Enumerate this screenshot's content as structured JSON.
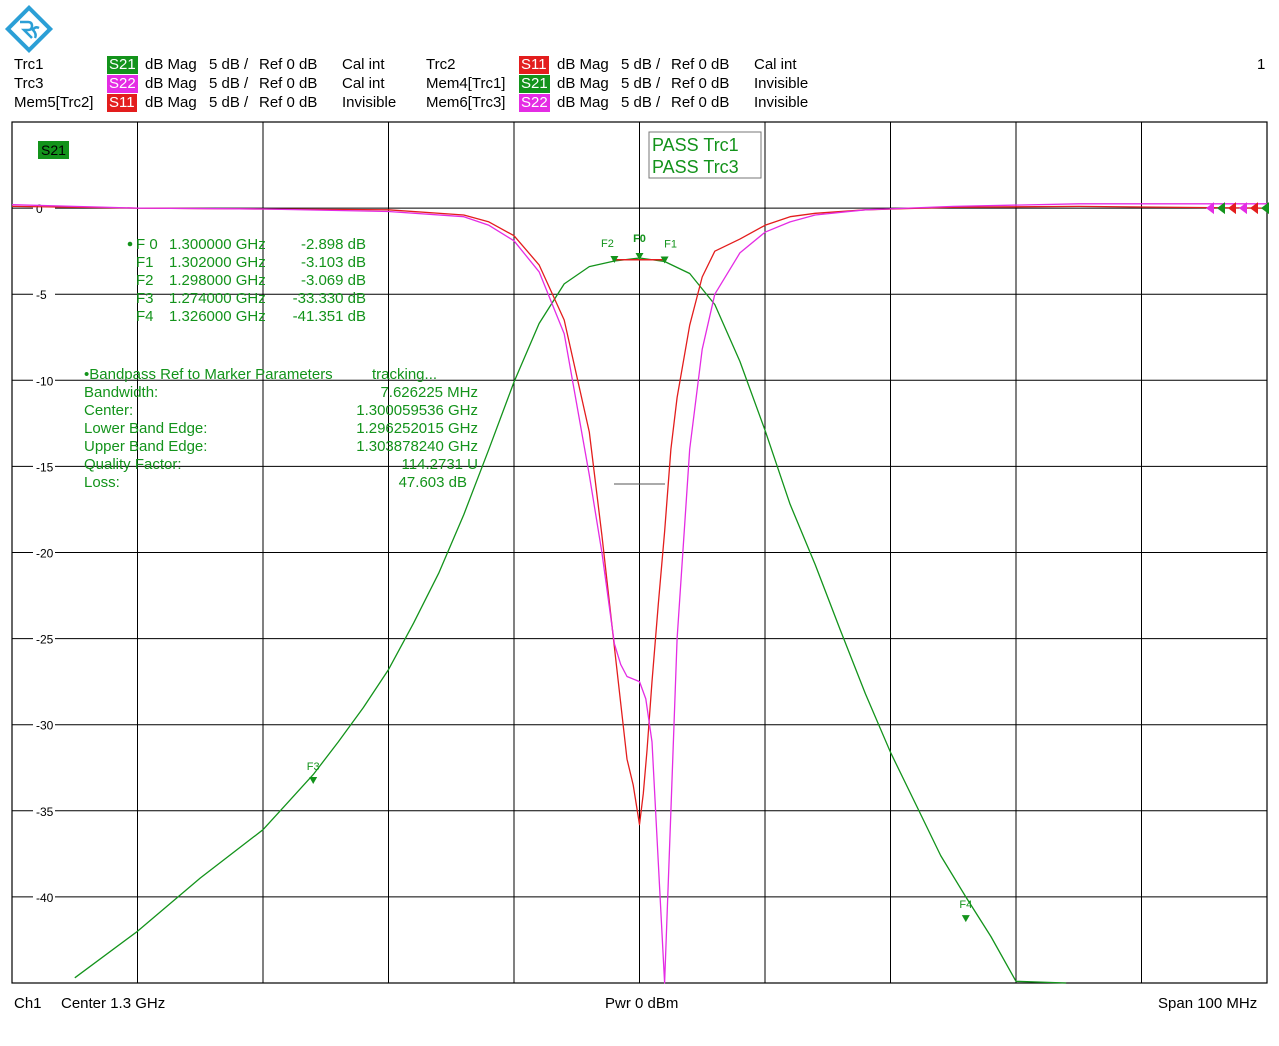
{
  "header": {
    "page_number": "1",
    "rows": [
      [
        {
          "trace": "Trc1",
          "meas": "S21",
          "meas_color": "#13931b",
          "format": "dB Mag",
          "scale": "5 dB /",
          "ref": "Ref 0 dB",
          "cal": "Cal int"
        },
        {
          "trace": "Trc2",
          "meas": "S11",
          "meas_color": "#e31d1d",
          "format": "dB Mag",
          "scale": "5 dB /",
          "ref": "Ref 0 dB",
          "cal": "Cal int"
        }
      ],
      [
        {
          "trace": "Trc3",
          "meas": "S22",
          "meas_color": "#e42ce4",
          "format": "dB Mag",
          "scale": "5 dB /",
          "ref": "Ref 0 dB",
          "cal": "Cal int"
        },
        {
          "trace": "Mem4[Trc1]",
          "meas": "S21",
          "meas_color": "#13931b",
          "format": "dB Mag",
          "scale": "5 dB /",
          "ref": "Ref 0 dB",
          "cal": "Invisible"
        }
      ],
      [
        {
          "trace": "Mem5[Trc2]",
          "meas": "S11",
          "meas_color": "#e31d1d",
          "format": "dB Mag",
          "scale": "5 dB /",
          "ref": "Ref 0 dB",
          "cal": "Invisible"
        },
        {
          "trace": "Mem6[Trc3]",
          "meas": "S22",
          "meas_color": "#e42ce4",
          "format": "dB Mag",
          "scale": "5 dB /",
          "ref": "Ref 0 dB",
          "cal": "Invisible"
        }
      ]
    ]
  },
  "footer": {
    "channel": "Ch1",
    "center": "Center  1.3 GHz",
    "power": "Pwr  0 dBm",
    "span": "Span  100 MHz"
  },
  "colors": {
    "s21": "#13931b",
    "s11": "#e31d1d",
    "s22": "#e42ce4",
    "grid": "#000000"
  },
  "chart_data": {
    "type": "line",
    "active_trace_label": "S21",
    "x_start_ghz": 1.25,
    "x_stop_ghz": 1.35,
    "ylim": [
      -45,
      5
    ],
    "y_ticks": [
      0,
      -5,
      -10,
      -15,
      -20,
      -25,
      -30,
      -35,
      -40
    ],
    "y_tick_labels": [
      "0",
      "-5",
      "-10",
      "-15",
      "-20",
      "-25",
      "-30",
      "-35",
      "-40"
    ],
    "grid": true,
    "limit_check": [
      "PASS  Trc1",
      "PASS  Trc3"
    ],
    "markers": [
      {
        "name": "F 0",
        "short": "F0",
        "freq_ghz": 1.3,
        "freq": "1.300000 GHz",
        "value_db": -2.898,
        "value": "-2.898 dB"
      },
      {
        "name": "F1",
        "short": "F1",
        "freq_ghz": 1.302,
        "freq": "1.302000 GHz",
        "value_db": -3.103,
        "value": "-3.103 dB"
      },
      {
        "name": "F2",
        "short": "F2",
        "freq_ghz": 1.298,
        "freq": "1.298000 GHz",
        "value_db": -3.069,
        "value": "-3.069 dB"
      },
      {
        "name": "F3",
        "short": "F3",
        "freq_ghz": 1.274,
        "freq": "1.274000 GHz",
        "value_db": -33.33,
        "value": "-33.330 dB"
      },
      {
        "name": "F4",
        "short": "F4",
        "freq_ghz": 1.326,
        "freq": "1.326000 GHz",
        "value_db": -41.351,
        "value": "-41.351 dB"
      }
    ],
    "bandpass": {
      "title": "•Bandpass Ref to Marker Parameters",
      "status": "tracking...",
      "rows": [
        {
          "label": "Bandwidth:",
          "value": "7.626225 MHz"
        },
        {
          "label": "Center:",
          "value": "1.300059536 GHz"
        },
        {
          "label": "Lower Band Edge:",
          "value": "1.296252015 GHz"
        },
        {
          "label": "Upper Band Edge:",
          "value": "1.303878240 GHz"
        },
        {
          "label": "Quality Factor:",
          "value": "114.2731 U"
        },
        {
          "label": "Loss:",
          "value": "47.603 dB"
        }
      ]
    },
    "series": [
      {
        "name": "S21",
        "x_mhz_offset": [
          -45,
          -40,
          -35,
          -30,
          -28,
          -26,
          -24,
          -22,
          -20,
          -18,
          -16,
          -14,
          -12,
          -10,
          -8,
          -6,
          -4,
          -2,
          0,
          2,
          4,
          6,
          8,
          10,
          12,
          14,
          16,
          18,
          20,
          22,
          24,
          26,
          28,
          30,
          34
        ],
        "y_db": [
          -44.7,
          -42.0,
          -38.9,
          -36.1,
          -34.5,
          -32.9,
          -31.0,
          -29.0,
          -26.8,
          -24.1,
          -21.2,
          -17.8,
          -14.0,
          -10.1,
          -6.7,
          -4.4,
          -3.4,
          -3.07,
          -2.9,
          -3.1,
          -3.8,
          -5.6,
          -8.9,
          -12.9,
          -17.2,
          -20.7,
          -24.5,
          -28.2,
          -31.6,
          -34.6,
          -37.6,
          -40.0,
          -42.3,
          -44.9,
          -45.5
        ]
      },
      {
        "name": "S11",
        "x_mhz_offset": [
          -50,
          -40,
          -30,
          -20,
          -14,
          -12,
          -10,
          -8,
          -6,
          -4,
          -3,
          -2,
          -1,
          -0.5,
          0,
          0.3,
          0.6,
          1,
          1.5,
          2,
          2.5,
          3,
          4,
          5,
          6,
          8,
          10,
          12,
          14,
          18,
          25,
          35,
          50
        ],
        "y_db": [
          0.1,
          0.0,
          -0.05,
          -0.1,
          -0.4,
          -0.8,
          -1.6,
          -3.3,
          -6.5,
          -13.0,
          -19.0,
          -25.5,
          -32.0,
          -33.5,
          -35.8,
          -34.0,
          -31.5,
          -27.5,
          -23.0,
          -18.8,
          -14.0,
          -11.0,
          -6.8,
          -4.0,
          -2.5,
          -1.8,
          -1.0,
          -0.5,
          -0.3,
          -0.1,
          0.05,
          0.1,
          0.0
        ]
      },
      {
        "name": "S22",
        "x_mhz_offset": [
          -50,
          -40,
          -30,
          -20,
          -14,
          -12,
          -10,
          -8,
          -6,
          -4,
          -3,
          -2,
          -1.5,
          -1,
          0,
          0.5,
          1,
          1.5,
          2,
          2.5,
          3,
          4,
          5,
          6,
          8,
          10,
          12,
          14,
          18,
          25,
          35,
          50
        ],
        "y_db": [
          0.2,
          0.0,
          -0.05,
          -0.2,
          -0.5,
          -1.0,
          -1.9,
          -3.7,
          -7.3,
          -15.5,
          -20.0,
          -25.3,
          -26.5,
          -27.2,
          -27.5,
          -28.5,
          -31.0,
          -38.0,
          -45.0,
          -35.0,
          -25.0,
          -14.0,
          -8.2,
          -5.0,
          -2.6,
          -1.4,
          -0.8,
          -0.4,
          -0.1,
          0.1,
          0.25,
          0.25
        ]
      }
    ]
  }
}
